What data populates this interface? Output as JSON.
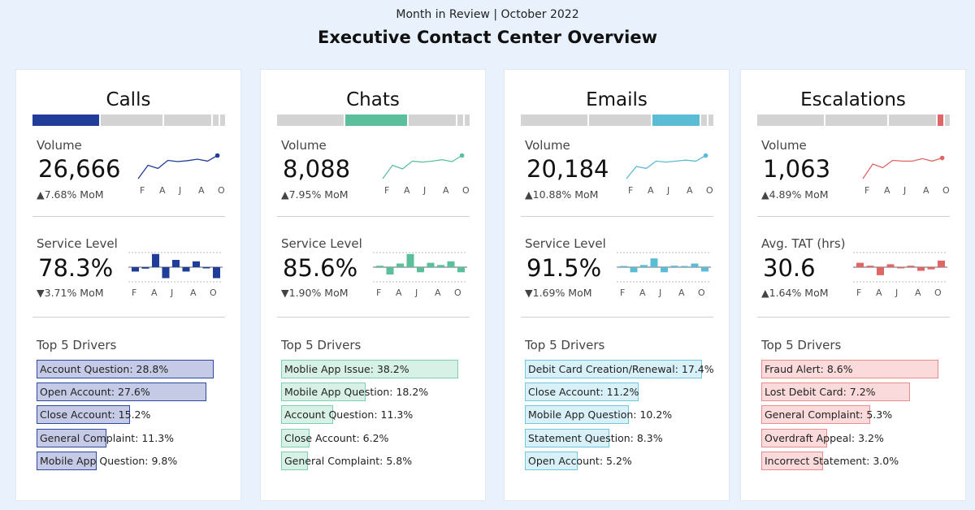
{
  "header": {
    "subtitle": "Month in Review | October 2022",
    "title": "Executive Contact Center Overview"
  },
  "month_labels": [
    "F",
    "A",
    "J",
    "A",
    "O"
  ],
  "share_segments": [
    {
      "name": "Calls",
      "fraction": 0.355
    },
    {
      "name": "Chats",
      "fraction": 0.33
    },
    {
      "name": "Emails",
      "fraction": 0.25
    },
    {
      "name": "Escalations",
      "fraction": 0.04
    }
  ],
  "cards": [
    {
      "title": "Calls",
      "color": "#1f3d99",
      "fill": "#c5cbe6",
      "border": "#2d4a9e",
      "volume_label": "Volume",
      "volume": "26,666",
      "volume_mom": "▲7.68% MoM",
      "volume_trend": [
        0,
        0.55,
        0.42,
        0.75,
        0.7,
        0.74,
        0.8,
        0.72,
        0.95
      ],
      "metric_label": "Service Level",
      "metric": "78.3%",
      "metric_mom": "▼3.71% MoM",
      "metric_deltas": [
        -0.3,
        -0.1,
        0.9,
        -0.75,
        0.5,
        -0.3,
        0.4,
        -0.05,
        -0.75
      ],
      "drivers_label": "Top 5 Drivers",
      "drivers": [
        {
          "label": "Account Question: 28.8%",
          "value": 28.8
        },
        {
          "label": "Open Account: 27.6%",
          "value": 27.6
        },
        {
          "label": "Close Account: 15.2%",
          "value": 15.2
        },
        {
          "label": "General Complaint: 11.3%",
          "value": 11.3
        },
        {
          "label": "Mobile App Question: 9.8%",
          "value": 9.8
        }
      ]
    },
    {
      "title": "Chats",
      "color": "#5bbf9b",
      "fill": "#d7f1e7",
      "border": "#7fcfb0",
      "volume_label": "Volume",
      "volume": "8,088",
      "volume_mom": "▲7.95% MoM",
      "volume_trend": [
        0,
        0.55,
        0.4,
        0.72,
        0.68,
        0.72,
        0.78,
        0.7,
        0.95
      ],
      "metric_label": "Service Level",
      "metric": "85.6%",
      "metric_mom": "▼1.90% MoM",
      "metric_deltas": [
        0.1,
        -0.5,
        0.25,
        0.9,
        -0.35,
        0.3,
        0.15,
        0.4,
        -0.35
      ],
      "drivers_label": "Top 5 Drivers",
      "drivers": [
        {
          "label": "Moblie App Issue: 38.2%",
          "value": 38.2
        },
        {
          "label": "Mobile App Question: 18.2%",
          "value": 18.2
        },
        {
          "label": "Account Question: 11.3%",
          "value": 11.3
        },
        {
          "label": "Close Account: 6.2%",
          "value": 6.2
        },
        {
          "label": "General Complaint: 5.8%",
          "value": 5.8
        }
      ]
    },
    {
      "title": "Emails",
      "color": "#5bbcd6",
      "fill": "#d8f0f7",
      "border": "#70c8de",
      "volume_label": "Volume",
      "volume": "20,184",
      "volume_mom": "▲10.88% MoM",
      "volume_trend": [
        0,
        0.5,
        0.42,
        0.72,
        0.68,
        0.72,
        0.76,
        0.72,
        0.95
      ],
      "metric_label": "Service Level",
      "metric": "91.5%",
      "metric_mom": "▼1.69% MoM",
      "metric_deltas": [
        0.05,
        -0.35,
        0.15,
        0.6,
        -0.35,
        0.1,
        0.05,
        0.25,
        -0.3
      ],
      "drivers_label": "Top 5 Drivers",
      "drivers": [
        {
          "label": "Debit Card Creation/Renewal: 17.4%",
          "value": 17.4
        },
        {
          "label": "Close Account: 11.2%",
          "value": 11.2
        },
        {
          "label": "Mobile App Question: 10.2%",
          "value": 10.2
        },
        {
          "label": "Statement Question: 8.3%",
          "value": 8.3
        },
        {
          "label": "Open Account: 5.2%",
          "value": 5.2
        }
      ]
    },
    {
      "title": "Escalations",
      "color": "#e06666",
      "fill": "#fadada",
      "border": "#e88c8c",
      "volume_label": "Volume",
      "volume": "1,063",
      "volume_mom": "▲4.89% MoM",
      "volume_trend": [
        0,
        0.6,
        0.45,
        0.75,
        0.72,
        0.72,
        0.82,
        0.72,
        0.85
      ],
      "metric_label": "Avg. TAT (hrs)",
      "metric": "30.6",
      "metric_mom": "▲1.64% MoM",
      "metric_deltas": [
        0.3,
        0.1,
        -0.55,
        0.2,
        -0.05,
        0.1,
        -0.25,
        -0.15,
        0.45
      ],
      "drivers_label": "Top 5 Drivers",
      "drivers": [
        {
          "label": "Fraud Alert: 8.6%",
          "value": 8.6
        },
        {
          "label": "Lost Debit Card: 7.2%",
          "value": 7.2
        },
        {
          "label": "General Complaint: 5.3%",
          "value": 5.3
        },
        {
          "label": "Overdraft Appeal: 3.2%",
          "value": 3.2
        },
        {
          "label": "Incorrect Statement: 3.0%",
          "value": 3.0
        }
      ]
    }
  ]
}
